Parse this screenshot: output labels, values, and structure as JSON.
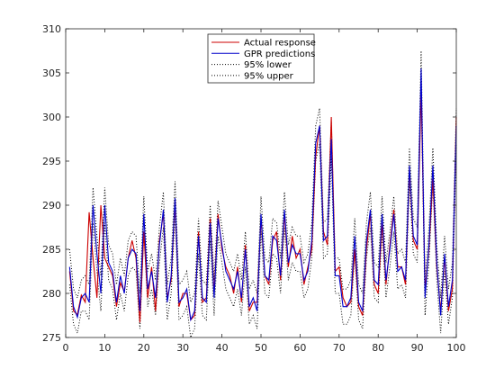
{
  "chart_data": {
    "type": "line",
    "title": "",
    "xlabel": "",
    "ylabel": "",
    "xlim": [
      0,
      100
    ],
    "ylim": [
      275,
      310
    ],
    "xticks": [
      0,
      10,
      20,
      30,
      40,
      50,
      60,
      70,
      80,
      90,
      100
    ],
    "yticks": [
      275,
      280,
      285,
      290,
      295,
      300,
      305,
      310
    ],
    "grid": false,
    "legend_position": "top-center",
    "x": [
      1,
      2,
      3,
      4,
      5,
      6,
      7,
      8,
      9,
      10,
      11,
      12,
      13,
      14,
      15,
      16,
      17,
      18,
      19,
      20,
      21,
      22,
      23,
      24,
      25,
      26,
      27,
      28,
      29,
      30,
      31,
      32,
      33,
      34,
      35,
      36,
      37,
      38,
      39,
      40,
      41,
      42,
      43,
      44,
      45,
      46,
      47,
      48,
      49,
      50,
      51,
      52,
      53,
      54,
      55,
      56,
      57,
      58,
      59,
      60,
      61,
      62,
      63,
      64,
      65,
      66,
      67,
      68,
      69,
      70,
      71,
      72,
      73,
      74,
      75,
      76,
      77,
      78,
      79,
      80,
      81,
      82,
      83,
      84,
      85,
      86,
      87,
      88,
      89,
      90,
      91,
      92,
      93,
      94,
      95,
      96,
      97,
      98,
      99,
      100
    ],
    "series": [
      {
        "name": "Actual response",
        "color": "#cc0000",
        "style": "solid",
        "values": [
          282.5,
          278.0,
          277.6,
          279.8,
          279.0,
          289.2,
          284.0,
          279.5,
          290.0,
          284.0,
          283.0,
          282.0,
          278.5,
          281.2,
          280.2,
          284.0,
          286.0,
          284.0,
          276.7,
          287.0,
          279.5,
          283.0,
          278.0,
          286.0,
          289.0,
          279.5,
          281.5,
          290.5,
          278.5,
          280.0,
          280.0,
          277.0,
          277.5,
          287.0,
          279.0,
          279.5,
          288.5,
          280.0,
          289.0,
          285.0,
          283.0,
          282.0,
          280.0,
          283.0,
          279.0,
          285.5,
          278.0,
          279.0,
          279.0,
          288.5,
          282.0,
          281.0,
          286.0,
          287.0,
          281.5,
          289.0,
          283.0,
          286.5,
          284.0,
          285.0,
          281.0,
          283.0,
          285.0,
          295.5,
          299.0,
          287.0,
          285.5,
          300.0,
          282.5,
          283.0,
          279.5,
          278.5,
          279.0,
          285.0,
          278.5,
          277.5,
          285.0,
          289.0,
          281.0,
          280.0,
          288.0,
          281.0,
          285.5,
          289.5,
          283.0,
          283.0,
          281.0,
          294.0,
          286.0,
          285.0,
          303.0,
          280.5,
          285.0,
          293.0,
          283.0,
          278.0,
          284.0,
          278.0,
          280.5,
          300.0
        ]
      },
      {
        "name": "GPR predictions",
        "color": "#0000cc",
        "style": "solid",
        "values": [
          283.0,
          278.5,
          277.3,
          279.5,
          280.0,
          279.0,
          290.0,
          284.5,
          280.0,
          290.0,
          283.5,
          282.5,
          279.0,
          282.0,
          280.0,
          284.0,
          285.0,
          284.5,
          278.0,
          289.0,
          280.5,
          282.5,
          279.5,
          285.5,
          289.5,
          279.0,
          282.0,
          290.8,
          279.0,
          279.5,
          280.5,
          277.0,
          278.0,
          286.5,
          279.5,
          279.0,
          288.0,
          279.5,
          288.5,
          285.5,
          282.5,
          281.5,
          280.5,
          282.5,
          279.5,
          285.0,
          278.5,
          279.5,
          278.0,
          289.0,
          282.0,
          281.5,
          286.5,
          286.0,
          282.0,
          289.5,
          283.5,
          285.5,
          284.5,
          284.5,
          281.5,
          282.5,
          286.0,
          297.0,
          299.0,
          286.0,
          286.5,
          297.5,
          282.0,
          282.0,
          278.5,
          278.5,
          279.5,
          286.5,
          279.0,
          278.0,
          286.0,
          289.5,
          281.5,
          281.0,
          289.0,
          281.5,
          285.0,
          289.0,
          282.5,
          283.0,
          281.5,
          294.5,
          286.5,
          285.5,
          305.5,
          279.5,
          285.5,
          294.5,
          283.5,
          277.5,
          284.5,
          278.5,
          281.5,
          299.0
        ]
      },
      {
        "name": "95% lower",
        "color": "#000000",
        "style": "dotted",
        "values": [
          281.0,
          276.5,
          275.5,
          278.0,
          278.0,
          277.0,
          288.0,
          282.5,
          278.0,
          288.0,
          281.5,
          280.5,
          277.0,
          280.0,
          278.0,
          282.0,
          283.0,
          282.5,
          276.0,
          287.0,
          278.5,
          280.5,
          277.5,
          283.5,
          287.5,
          277.0,
          280.0,
          289.0,
          277.0,
          277.5,
          278.5,
          275.0,
          276.0,
          284.5,
          277.5,
          277.0,
          286.0,
          277.5,
          286.5,
          283.5,
          280.5,
          279.5,
          278.5,
          280.5,
          277.5,
          283.0,
          276.5,
          277.5,
          276.0,
          287.0,
          280.0,
          279.5,
          284.5,
          284.0,
          280.0,
          287.5,
          281.5,
          283.5,
          282.5,
          282.5,
          279.5,
          280.5,
          284.0,
          295.0,
          297.0,
          284.0,
          284.5,
          295.5,
          280.0,
          280.0,
          276.5,
          276.5,
          277.5,
          284.5,
          277.0,
          276.0,
          284.0,
          287.5,
          279.5,
          279.0,
          287.0,
          279.5,
          283.0,
          287.0,
          280.5,
          281.0,
          279.5,
          292.5,
          284.5,
          283.5,
          303.5,
          277.5,
          283.5,
          292.5,
          281.5,
          275.5,
          282.5,
          276.5,
          279.5,
          297.0
        ]
      },
      {
        "name": "95% upper",
        "color": "#000000",
        "style": "dotted",
        "values": [
          285.0,
          280.5,
          279.5,
          281.5,
          282.0,
          281.0,
          292.0,
          286.5,
          282.0,
          292.0,
          285.5,
          284.5,
          281.0,
          284.0,
          282.0,
          286.0,
          287.0,
          286.5,
          280.0,
          291.0,
          282.5,
          284.5,
          281.5,
          287.5,
          291.5,
          281.0,
          284.0,
          292.7,
          281.0,
          281.5,
          282.5,
          279.0,
          280.0,
          288.5,
          281.5,
          281.0,
          290.0,
          281.5,
          290.5,
          287.5,
          284.5,
          283.5,
          282.5,
          284.5,
          281.5,
          287.0,
          280.5,
          281.5,
          280.0,
          291.0,
          284.0,
          283.5,
          288.5,
          288.0,
          284.0,
          291.5,
          285.5,
          287.5,
          286.5,
          286.5,
          283.5,
          284.5,
          288.0,
          299.0,
          301.0,
          288.0,
          288.5,
          299.5,
          284.0,
          284.0,
          280.5,
          280.5,
          281.5,
          288.5,
          281.0,
          280.0,
          288.0,
          291.5,
          283.5,
          283.0,
          291.0,
          283.5,
          287.0,
          291.0,
          284.5,
          285.0,
          283.5,
          296.5,
          288.5,
          287.5,
          307.5,
          281.5,
          287.5,
          296.5,
          285.5,
          279.5,
          286.5,
          280.5,
          283.5,
          301.0
        ]
      }
    ]
  }
}
